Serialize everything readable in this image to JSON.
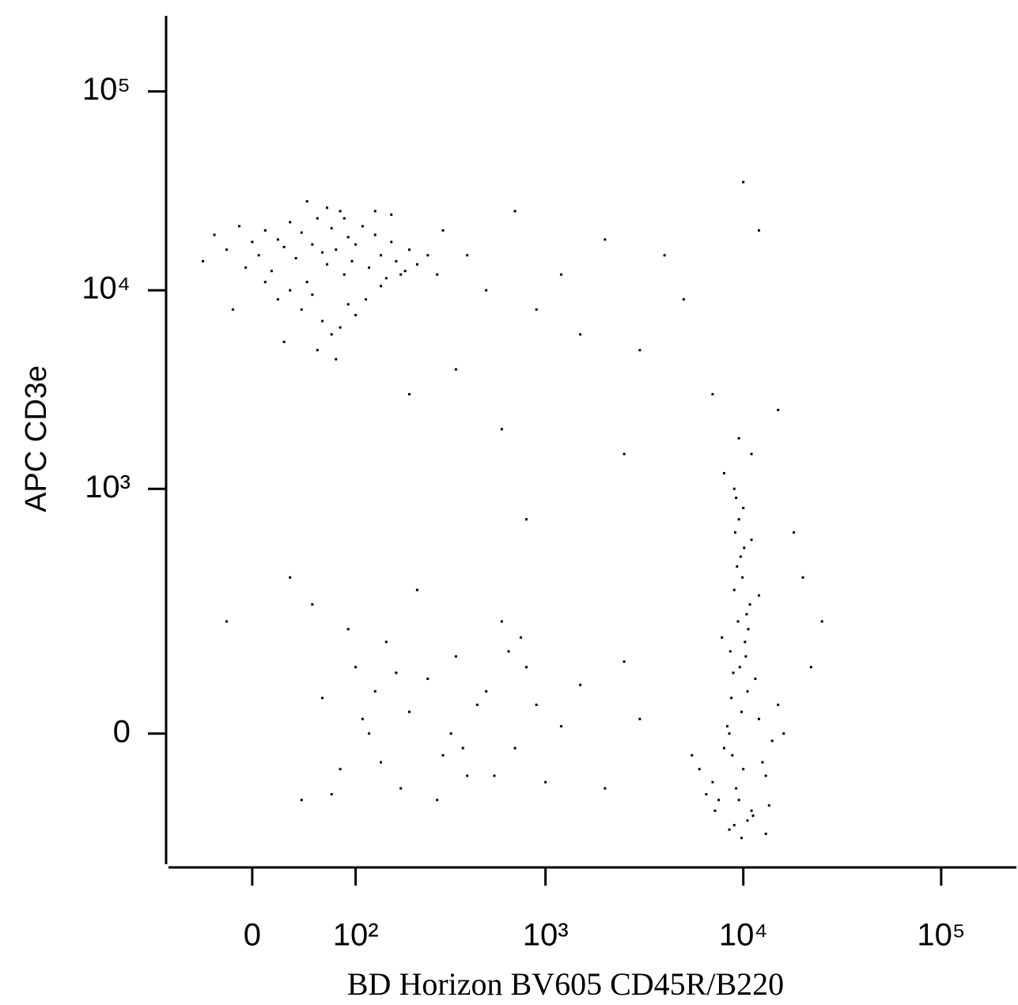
{
  "chart_data": {
    "type": "scatter",
    "x_label": "BD Horizon BV605 CD45R/B220",
    "y_label": "APC CD3e",
    "xscale": "biexponential",
    "yscale": "biexponential",
    "xlim": [
      -75,
      240000
    ],
    "ylim": [
      -255,
      240000
    ],
    "xticks": [
      0,
      {
        "value": 100,
        "label": "10²"
      },
      {
        "value": 1000,
        "label": "10³"
      },
      {
        "value": 10000,
        "label": "10⁴"
      },
      {
        "value": 100000,
        "label": "10⁵"
      }
    ],
    "yticks": [
      0,
      {
        "value": 1000,
        "label": "10³"
      },
      {
        "value": 10000,
        "label": "10⁴"
      },
      {
        "value": 100000,
        "label": "10⁵"
      }
    ],
    "color": "#000000",
    "x": [
      -40,
      -30,
      -20,
      -10,
      -5,
      0,
      5,
      10,
      15,
      20,
      25,
      30,
      35,
      40,
      45,
      50,
      55,
      60,
      65,
      70,
      75,
      80,
      85,
      90,
      95,
      100,
      110,
      120,
      130,
      140,
      150,
      160,
      170,
      180,
      200,
      220,
      250,
      280,
      20,
      40,
      60,
      80,
      100,
      30,
      50,
      70,
      90,
      10,
      -15,
      130,
      160,
      45,
      65,
      85,
      25,
      55,
      75,
      115,
      140,
      190,
      9000,
      9500,
      10000,
      8500,
      11000,
      9800,
      10500,
      9200,
      8800,
      12000,
      7500,
      13000,
      9600,
      10200,
      8000,
      11500,
      9400,
      10800,
      7000,
      14000,
      9000,
      9900,
      10300,
      8700,
      12500,
      6500,
      15000,
      9300,
      10600,
      8300,
      11200,
      9700,
      10100,
      8900,
      13500,
      6000,
      16000,
      9100,
      10400,
      8600,
      9500,
      10000,
      9000,
      11000,
      8500,
      9800,
      10500,
      7800,
      12000,
      9200,
      20000,
      22000,
      5500,
      8000,
      11000,
      9500,
      18000,
      25000,
      7200,
      13000,
      40,
      60,
      80,
      100,
      120,
      150,
      180,
      200,
      250,
      300,
      350,
      400,
      500,
      600,
      700,
      800,
      900,
      1000,
      1200,
      1500,
      50,
      70,
      90,
      110,
      140,
      170,
      220,
      280,
      330,
      450,
      550,
      650,
      750,
      2000,
      2500,
      3000,
      30,
      -20,
      130,
      380,
      300,
      400,
      500,
      700,
      900,
      1200,
      1500,
      2000,
      3000,
      4000,
      5000,
      7000,
      10000,
      12000,
      200,
      350,
      600,
      800,
      2500,
      15000
    ],
    "y": [
      14000,
      19000,
      16000,
      21000,
      13000,
      17500,
      15000,
      20000,
      12500,
      18000,
      16500,
      22000,
      14500,
      19500,
      11000,
      17000,
      23000,
      15500,
      13500,
      20500,
      16000,
      25000,
      12000,
      18500,
      14000,
      17000,
      21000,
      13000,
      19000,
      15000,
      11500,
      17500,
      14000,
      12000,
      16000,
      13500,
      15000,
      12000,
      9000,
      8000,
      7000,
      6500,
      7500,
      10000,
      9500,
      6000,
      8500,
      11000,
      8000,
      25000,
      24000,
      28000,
      26000,
      23000,
      5500,
      5000,
      4500,
      9000,
      10500,
      12500,
      -150,
      -100,
      -50,
      0,
      -120,
      30,
      60,
      -80,
      -30,
      20,
      -100,
      -60,
      100,
      150,
      -20,
      80,
      200,
      250,
      -70,
      -10,
      300,
      350,
      120,
      50,
      -40,
      -90,
      40,
      400,
      180,
      10,
      -130,
      450,
      500,
      90,
      -110,
      -50,
      0,
      600,
      220,
      130,
      700,
      800,
      1000,
      550,
      -160,
      -180,
      -140,
      160,
      280,
      900,
      350,
      100,
      -30,
      1200,
      1500,
      1800,
      600,
      200,
      -120,
      -170,
      -100,
      50,
      -50,
      100,
      0,
      150,
      -80,
      30,
      80,
      -30,
      120,
      -60,
      60,
      200,
      -20,
      100,
      40,
      -70,
      10,
      70,
      250,
      -90,
      180,
      20,
      -40,
      90,
      300,
      -100,
      0,
      40,
      -60,
      130,
      160,
      -80,
      110,
      20,
      350,
      200,
      60,
      -20,
      20000,
      15000,
      10000,
      25000,
      8000,
      12000,
      6000,
      18000,
      5000,
      15000,
      9000,
      3000,
      35000,
      20000,
      3000,
      4000,
      2000,
      700,
      1500,
      2500
    ]
  }
}
